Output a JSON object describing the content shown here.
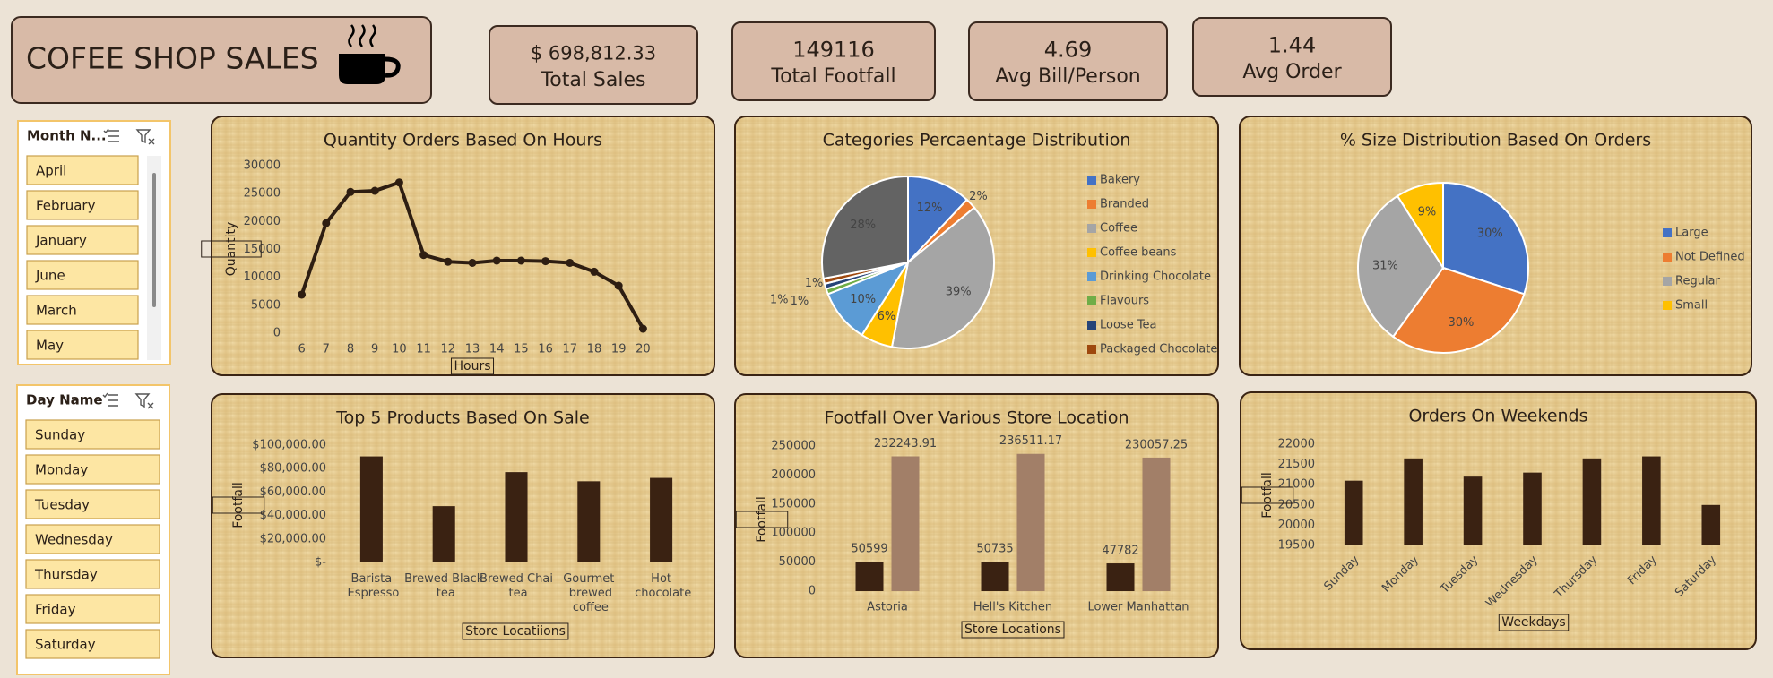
{
  "header": {
    "title": "COFEE SHOP SALES"
  },
  "kpis": [
    {
      "value": "$ 698,812.33",
      "label": "Total Sales"
    },
    {
      "value": "149116",
      "label": "Total Footfall"
    },
    {
      "value": "4.69",
      "label": "Avg Bill/Person"
    },
    {
      "value": "1.44",
      "label": "Avg Order"
    }
  ],
  "slicers": [
    {
      "title": "Month N...",
      "items": [
        "April",
        "February",
        "January",
        "June",
        "March",
        "May"
      ]
    },
    {
      "title": "Day Name",
      "items": [
        "Sunday",
        "Monday",
        "Tuesday",
        "Wednesday",
        "Thursday",
        "Friday",
        "Saturday"
      ]
    }
  ],
  "chart_data": [
    {
      "type": "line",
      "title": "Quantity Orders Based On Hours",
      "x_label": "Hours",
      "y_label": "Quantity",
      "categories": [
        "6",
        "7",
        "8",
        "9",
        "10",
        "11",
        "12",
        "13",
        "14",
        "15",
        "16",
        "17",
        "18",
        "19",
        "20"
      ],
      "values": [
        6900,
        19700,
        25300,
        25500,
        27000,
        14000,
        12800,
        12600,
        13000,
        13000,
        12900,
        12600,
        11000,
        8500,
        800
      ],
      "color": "#2e1e12",
      "ylim": [
        0,
        30000
      ],
      "yticks": [
        0,
        5000,
        10000,
        15000,
        20000,
        25000,
        30000
      ],
      "grid": false
    },
    {
      "type": "pie",
      "title": "Categories Percaentage Distribution",
      "categories": [
        "Bakery",
        "Branded",
        "Coffee",
        "Coffee beans",
        "Drinking Chocolate",
        "Flavours",
        "Loose Tea",
        "Packaged Chocolate",
        null
      ],
      "values": [
        12,
        2,
        39,
        6,
        10,
        1,
        1,
        1,
        28
      ],
      "value_labels": [
        "12%",
        "2%",
        "39%",
        "6%",
        "10%",
        "1%",
        "1%",
        "1%",
        "28%"
      ],
      "colors": [
        "#4472c4",
        "#ed7d31",
        "#a5a5a5",
        "#ffc000",
        "#5b9bd5",
        "#70ad47",
        "#264478",
        "#9e480e",
        "#636363"
      ],
      "legend": "right"
    },
    {
      "type": "pie",
      "title": "% Size Distribution Based On Orders",
      "categories": [
        "Large",
        "Not Defined",
        "Regular",
        "Small"
      ],
      "values": [
        30,
        30,
        31,
        9
      ],
      "value_labels": [
        "30%",
        "30%",
        "31%",
        "9%"
      ],
      "colors": [
        "#4472c4",
        "#ed7d31",
        "#a5a5a5",
        "#ffc000"
      ],
      "legend": "right"
    },
    {
      "type": "bar",
      "title": "Top 5 Products Based On Sale",
      "x_label": "Store Locatiions",
      "y_label": "Footfall",
      "categories": [
        "Barista Espresso",
        "Brewed Black tea",
        "Brewed Chai tea",
        "Gourmet brewed coffee",
        "Hot chocolate"
      ],
      "series": [
        {
          "color": "#3a2212",
          "values": [
            90400,
            48000,
            77000,
            69200,
            72100
          ]
        }
      ],
      "ylim": [
        0,
        100000
      ],
      "yticks": [
        {
          "value": 0,
          "label": "$-"
        },
        {
          "value": 20000,
          "label": "$20,000.00"
        },
        {
          "value": 40000,
          "label": "$40,000.00"
        },
        {
          "value": 60000,
          "label": "$60,000.00"
        },
        {
          "value": 80000,
          "label": "$80,000.00"
        },
        {
          "value": 100000,
          "label": "$100,000.00"
        }
      ],
      "grid": false
    },
    {
      "type": "bar",
      "title": "Footfall Over Various Store Location",
      "x_label": "Store Locations",
      "y_label": "Footfall",
      "categories": [
        "Astoria",
        "Hell's Kitchen",
        "Lower Manhattan"
      ],
      "series": [
        {
          "color": "#3a2212",
          "values": [
            50599,
            50735,
            47782
          ]
        },
        {
          "color": "#a27f68",
          "values": [
            232243.91,
            236511.17,
            230057.25
          ]
        }
      ],
      "data_labels": true,
      "ylim": [
        0,
        250000
      ],
      "yticks": [
        0,
        50000,
        100000,
        150000,
        200000,
        250000
      ],
      "grid": false
    },
    {
      "type": "bar",
      "title": "Orders On Weekends",
      "x_label": "Weekdays",
      "y_label": "Footfall",
      "categories": [
        "Sunday",
        "Monday",
        "Tuesday",
        "Wednesday",
        "Thursday",
        "Friday",
        "Saturday"
      ],
      "series": [
        {
          "color": "#3a2212",
          "values": [
            21100,
            21650,
            21200,
            21300,
            21650,
            21700,
            20500
          ]
        }
      ],
      "ylim": [
        19500,
        22000
      ],
      "yticks": [
        19500,
        20000,
        20500,
        21000,
        21500,
        22000
      ],
      "grid": false,
      "rotate_labels": true
    }
  ]
}
